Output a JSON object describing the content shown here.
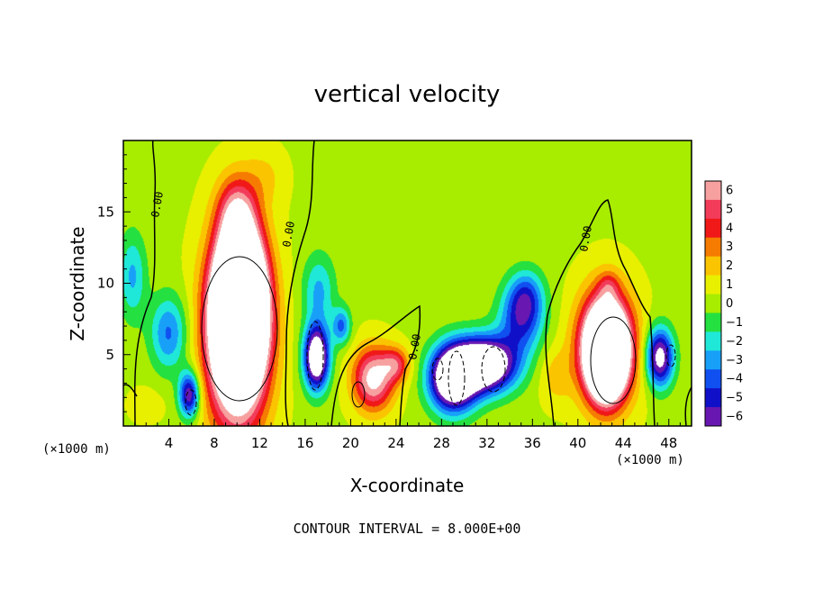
{
  "chart_data": {
    "type": "heatmap",
    "title": "vertical velocity",
    "xlabel": "X-coordinate",
    "ylabel": "Z-coordinate",
    "x_unit": "(×1000 m)",
    "x_unit_right": "(×1000 m)",
    "xlim": [
      0,
      50
    ],
    "ylim": [
      0,
      20
    ],
    "x_ticks": [
      4,
      8,
      12,
      16,
      20,
      24,
      28,
      32,
      36,
      40,
      44,
      48
    ],
    "y_ticks": [
      5,
      10,
      15
    ],
    "colorbar": {
      "levels": [
        6,
        5,
        4,
        3,
        2,
        1,
        0,
        -1,
        -2,
        -3,
        -4,
        -5,
        -6
      ],
      "labels": [
        "6",
        "5",
        "4",
        "3",
        "2",
        "1",
        "0",
        "−1",
        "−2",
        "−3",
        "−4",
        "−5",
        "−6"
      ],
      "colors": [
        "#f7a0a0",
        "#f23c5a",
        "#f01818",
        "#f57c00",
        "#fbc400",
        "#e8f000",
        "#a8ec00",
        "#24e040",
        "#20e8d8",
        "#18a0f8",
        "#1050f0",
        "#1010c8",
        "#6818b0"
      ]
    },
    "contour_labels": [
      "0.00",
      "0.00",
      "0.00",
      "0.00"
    ],
    "contour_interval_text": "CONTOUR INTERVAL = 8.000E+00",
    "cells": [
      {
        "x": 10.0,
        "z": 6.5,
        "rx": 2.7,
        "rz": 6.5,
        "w": 12
      },
      {
        "x": 10.3,
        "z": 8.5,
        "rx": 1.9,
        "rz": 4.5,
        "w": 20
      },
      {
        "x": 42.5,
        "z": 5.5,
        "rx": 2.4,
        "rz": 3.8,
        "w": 11
      },
      {
        "x": 42.5,
        "z": 5.0,
        "rx": 1.4,
        "rz": 2.5,
        "w": 18
      },
      {
        "x": 22.0,
        "z": 3.3,
        "rx": 1.8,
        "rz": 2.2,
        "w": 7
      },
      {
        "x": 24.0,
        "z": 4.3,
        "rx": 1.2,
        "rz": 1.2,
        "w": 4
      },
      {
        "x": 10.0,
        "z": 15.0,
        "rx": 1.7,
        "rz": 2.5,
        "w": 4
      },
      {
        "x": 42.7,
        "z": 9.8,
        "rx": 0.9,
        "rz": 1.0,
        "w": 2
      },
      {
        "x": 17.0,
        "z": 4.8,
        "rx": 1.1,
        "rz": 2.2,
        "w": -10
      },
      {
        "x": 29.0,
        "z": 3.3,
        "rx": 2.0,
        "rz": 2.2,
        "w": -11
      },
      {
        "x": 31.8,
        "z": 4.3,
        "rx": 2.7,
        "rz": 1.9,
        "w": -11
      },
      {
        "x": 35.0,
        "z": 7.5,
        "rx": 1.9,
        "rz": 2.4,
        "w": -5
      },
      {
        "x": 35.5,
        "z": 9.2,
        "rx": 1.5,
        "rz": 1.8,
        "w": -3
      },
      {
        "x": 5.8,
        "z": 2.2,
        "rx": 0.9,
        "rz": 1.6,
        "w": -7
      },
      {
        "x": 47.2,
        "z": 4.8,
        "rx": 1.2,
        "rz": 2.0,
        "w": -8
      },
      {
        "x": 4.0,
        "z": 6.5,
        "rx": 1.6,
        "rz": 2.6,
        "w": -4
      },
      {
        "x": 17.2,
        "z": 9.5,
        "rx": 1.4,
        "rz": 2.5,
        "w": -3
      },
      {
        "x": 19.2,
        "z": 7.0,
        "rx": 0.8,
        "rz": 1.3,
        "w": -4
      },
      {
        "x": 0.8,
        "z": 10.5,
        "rx": 1.2,
        "rz": 3.0,
        "w": -3
      },
      {
        "x": 12.5,
        "z": 17.5,
        "rx": 1.8,
        "rz": 2.0,
        "w": 1.2
      },
      {
        "x": 38.0,
        "z": 3.5,
        "rx": 1.4,
        "rz": 2.0,
        "w": 1.6
      },
      {
        "x": 2.0,
        "z": 1.5,
        "rx": 1.5,
        "rz": 1.2,
        "w": 1.0
      }
    ]
  }
}
